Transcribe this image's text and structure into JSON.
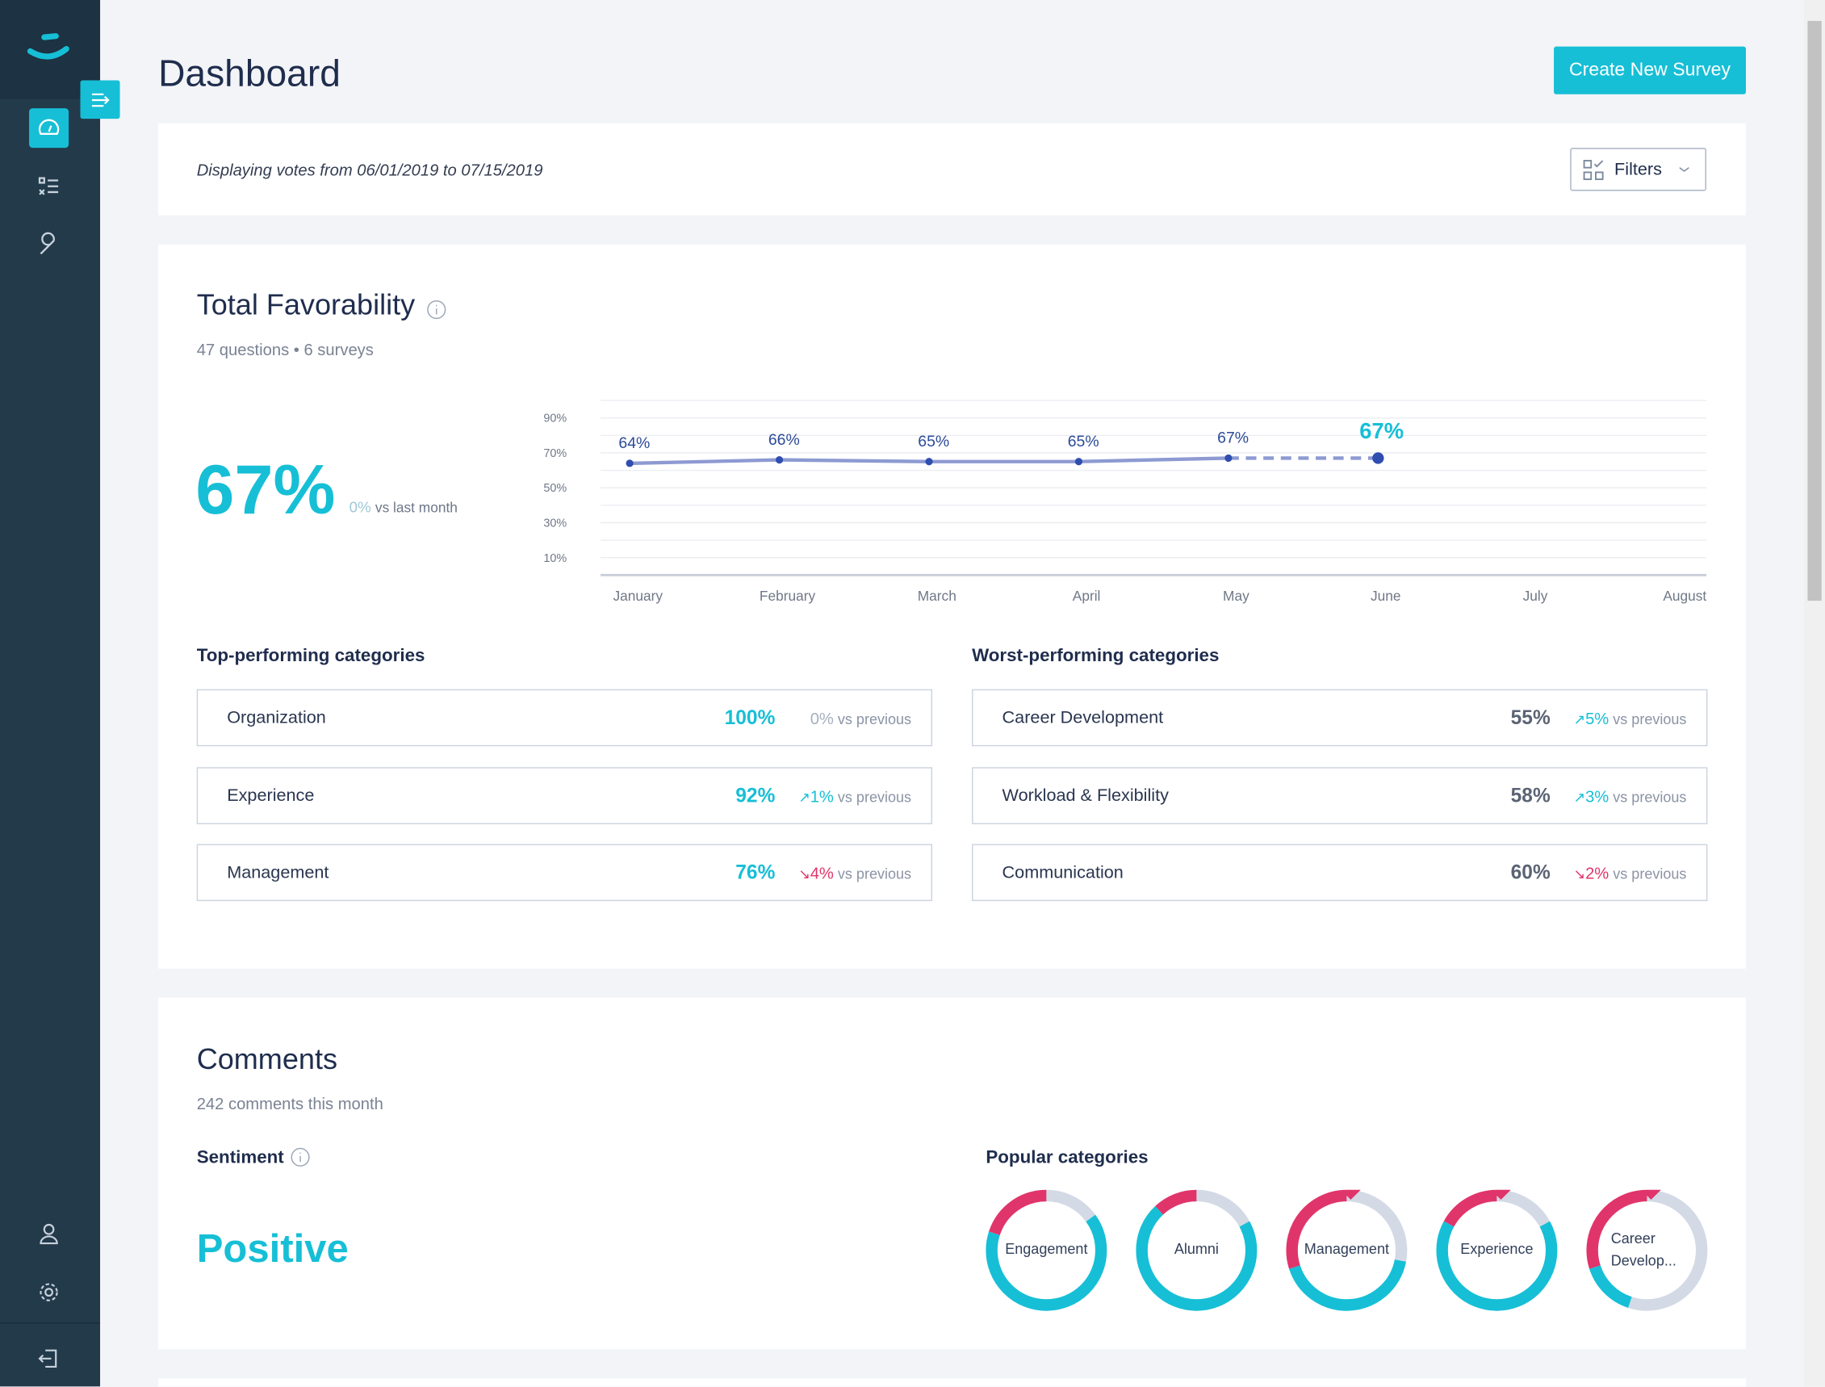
{
  "header": {
    "title": "Dashboard",
    "button": "Create New Survey"
  },
  "filter_bar": {
    "text": "Displaying votes from 06/01/2019 to 07/15/2019",
    "button": "Filters"
  },
  "favorability": {
    "title": "Total Favorability",
    "subtitle": "47 questions • 6 surveys",
    "value": "67%",
    "change": "0%",
    "change_label": "vs last month",
    "top": {
      "title": "Top-performing categories",
      "rows": [
        {
          "name": "Organization",
          "value": "100%",
          "change": "0%",
          "change_label": "vs previous",
          "trend": "none"
        },
        {
          "name": "Experience",
          "value": "92%",
          "change": "1%",
          "change_label": "vs previous",
          "trend": "up"
        },
        {
          "name": "Management",
          "value": "76%",
          "change": "4%",
          "change_label": "vs previous",
          "trend": "down"
        }
      ]
    },
    "worst": {
      "title": "Worst-performing categories",
      "rows": [
        {
          "name": "Career Development",
          "value": "55%",
          "change": "5%",
          "change_label": "vs previous",
          "trend": "up"
        },
        {
          "name": "Workload & Flexibility",
          "value": "58%",
          "change": "3%",
          "change_label": "vs previous",
          "trend": "up"
        },
        {
          "name": "Communication",
          "value": "60%",
          "change": "2%",
          "change_label": "vs previous",
          "trend": "down"
        }
      ]
    }
  },
  "comments": {
    "title": "Comments",
    "subtitle": "242 comments this month",
    "sentiment_title": "Sentiment",
    "sentiment": "Positive",
    "popular_title": "Popular categories"
  },
  "chart_data": [
    {
      "type": "line",
      "categories": [
        "January",
        "February",
        "March",
        "April",
        "May",
        "June",
        "July",
        "August"
      ],
      "values": [
        64,
        66,
        65,
        65,
        67,
        67,
        null,
        null
      ],
      "value_labels": [
        "64%",
        "66%",
        "65%",
        "65%",
        "67%",
        "67%",
        null,
        null
      ],
      "ylim": [
        0,
        100
      ],
      "yticks": [
        {
          "value": 90,
          "label": "90%"
        },
        {
          "value": 70,
          "label": "70%"
        },
        {
          "value": 50,
          "label": "50%"
        },
        {
          "value": 30,
          "label": "30%"
        },
        {
          "value": 10,
          "label": "10%"
        }
      ],
      "grid": true,
      "color": "#8d9ad2",
      "point_color": "#2f4eb0",
      "highlight_color": "#16bfd6",
      "dashed_last_segment": true
    },
    {
      "type": "donut",
      "label": "Engagement",
      "values": [
        15,
        65,
        20
      ],
      "colors": [
        "#d3dae6",
        "#16bfd6",
        "#e0356b"
      ]
    },
    {
      "type": "donut",
      "label": "Alumni",
      "values": [
        17,
        71,
        12
      ],
      "colors": [
        "#d3dae6",
        "#16bfd6",
        "#e0356b"
      ]
    },
    {
      "type": "donut",
      "label": "Management",
      "values": [
        28,
        42,
        30
      ],
      "colors": [
        "#d3dae6",
        "#16bfd6",
        "#e0356b"
      ]
    },
    {
      "type": "donut",
      "label": "Experience",
      "values": [
        17,
        66,
        17
      ],
      "colors": [
        "#d3dae6",
        "#16bfd6",
        "#e0356b"
      ]
    },
    {
      "type": "donut",
      "label": "Career Develop...",
      "values": [
        55,
        15,
        30
      ],
      "colors": [
        "#d3dae6",
        "#16bfd6",
        "#e0356b"
      ]
    }
  ]
}
